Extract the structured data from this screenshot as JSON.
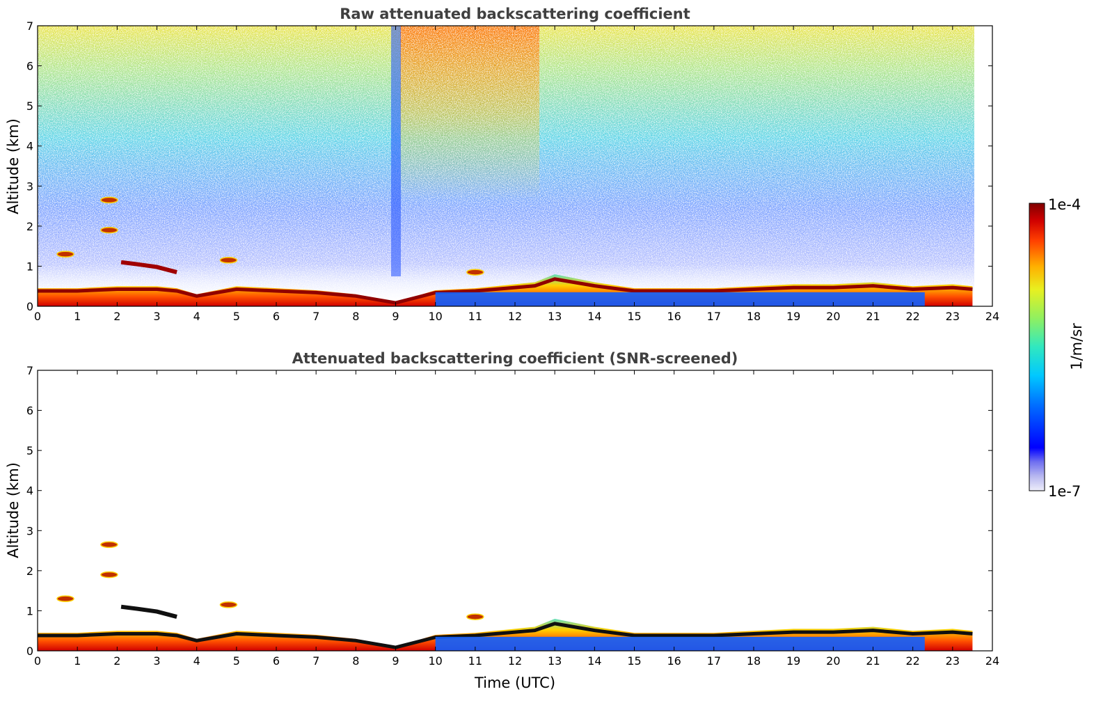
{
  "chart_data": [
    {
      "type": "heatmap",
      "title": "Raw attenuated backscattering coefficient",
      "xlabel": "",
      "ylabel": "Altitude (km)",
      "xlim": [
        0,
        24
      ],
      "ylim": [
        0,
        7
      ],
      "x_ticks": [
        "0",
        "1",
        "2",
        "3",
        "4",
        "5",
        "6",
        "7",
        "8",
        "9",
        "10",
        "11",
        "12",
        "13",
        "14",
        "15",
        "16",
        "17",
        "18",
        "19",
        "20",
        "21",
        "22",
        "23",
        "24"
      ],
      "y_ticks": [
        "0",
        "1",
        "2",
        "3",
        "4",
        "5",
        "6",
        "7"
      ],
      "data_end_time": 23.5,
      "features": {
        "boundary_layer_top_km": [
          {
            "t": 0,
            "h": 0.45
          },
          {
            "t": 1,
            "h": 0.45
          },
          {
            "t": 2,
            "h": 0.5
          },
          {
            "t": 3,
            "h": 0.5
          },
          {
            "t": 3.5,
            "h": 0.45
          },
          {
            "t": 4,
            "h": 0.3
          },
          {
            "t": 5,
            "h": 0.5
          },
          {
            "t": 6,
            "h": 0.45
          },
          {
            "t": 7,
            "h": 0.4
          },
          {
            "t": 8,
            "h": 0.3
          },
          {
            "t": 9,
            "h": 0.1
          },
          {
            "t": 10,
            "h": 0.4
          },
          {
            "t": 11,
            "h": 0.45
          },
          {
            "t": 12,
            "h": 0.55
          },
          {
            "t": 12.5,
            "h": 0.6
          },
          {
            "t": 13,
            "h": 0.8
          },
          {
            "t": 14,
            "h": 0.6
          },
          {
            "t": 15,
            "h": 0.45
          },
          {
            "t": 17,
            "h": 0.45
          },
          {
            "t": 18,
            "h": 0.5
          },
          {
            "t": 19,
            "h": 0.55
          },
          {
            "t": 20,
            "h": 0.55
          },
          {
            "t": 21,
            "h": 0.6
          },
          {
            "t": 22,
            "h": 0.5
          },
          {
            "t": 23,
            "h": 0.55
          },
          {
            "t": 23.5,
            "h": 0.5
          }
        ],
        "elevated_layer_km": [
          {
            "t": 2.1,
            "h": 1.1
          },
          {
            "t": 2.5,
            "h": 1.05
          },
          {
            "t": 3.0,
            "h": 0.98
          },
          {
            "t": 3.5,
            "h": 0.85
          }
        ],
        "cloud_patches": [
          {
            "t": 1.8,
            "h": 2.65
          },
          {
            "t": 1.8,
            "h": 1.9
          },
          {
            "t": 0.7,
            "h": 1.3
          },
          {
            "t": 4.8,
            "h": 1.15
          },
          {
            "t": 11.0,
            "h": 0.85
          }
        ]
      }
    },
    {
      "type": "heatmap",
      "title": "Attenuated backscattering coefficient (SNR-screened)",
      "xlabel": "Time (UTC)",
      "ylabel": "Altitude (km)",
      "xlim": [
        0,
        24
      ],
      "ylim": [
        0,
        7
      ],
      "x_ticks": [
        "0",
        "1",
        "2",
        "3",
        "4",
        "5",
        "6",
        "7",
        "8",
        "9",
        "10",
        "11",
        "12",
        "13",
        "14",
        "15",
        "16",
        "17",
        "18",
        "19",
        "20",
        "21",
        "22",
        "23",
        "24"
      ],
      "y_ticks": [
        "0",
        "1",
        "2",
        "3",
        "4",
        "5",
        "6",
        "7"
      ],
      "data_end_time": 23.5
    }
  ],
  "colorbar": {
    "label": "1/m/sr",
    "max_label": "1e-4",
    "min_label": "1e-7",
    "colors": [
      "#e8e8f8",
      "#c8c8f0",
      "#a0a0f0",
      "#7070f0",
      "#0000ff",
      "#0040ff",
      "#0090ff",
      "#00d0ff",
      "#20e8d0",
      "#60f090",
      "#a0f060",
      "#e0f020",
      "#ffe000",
      "#ffa000",
      "#ff6000",
      "#ff2000",
      "#d00000",
      "#800000"
    ]
  }
}
